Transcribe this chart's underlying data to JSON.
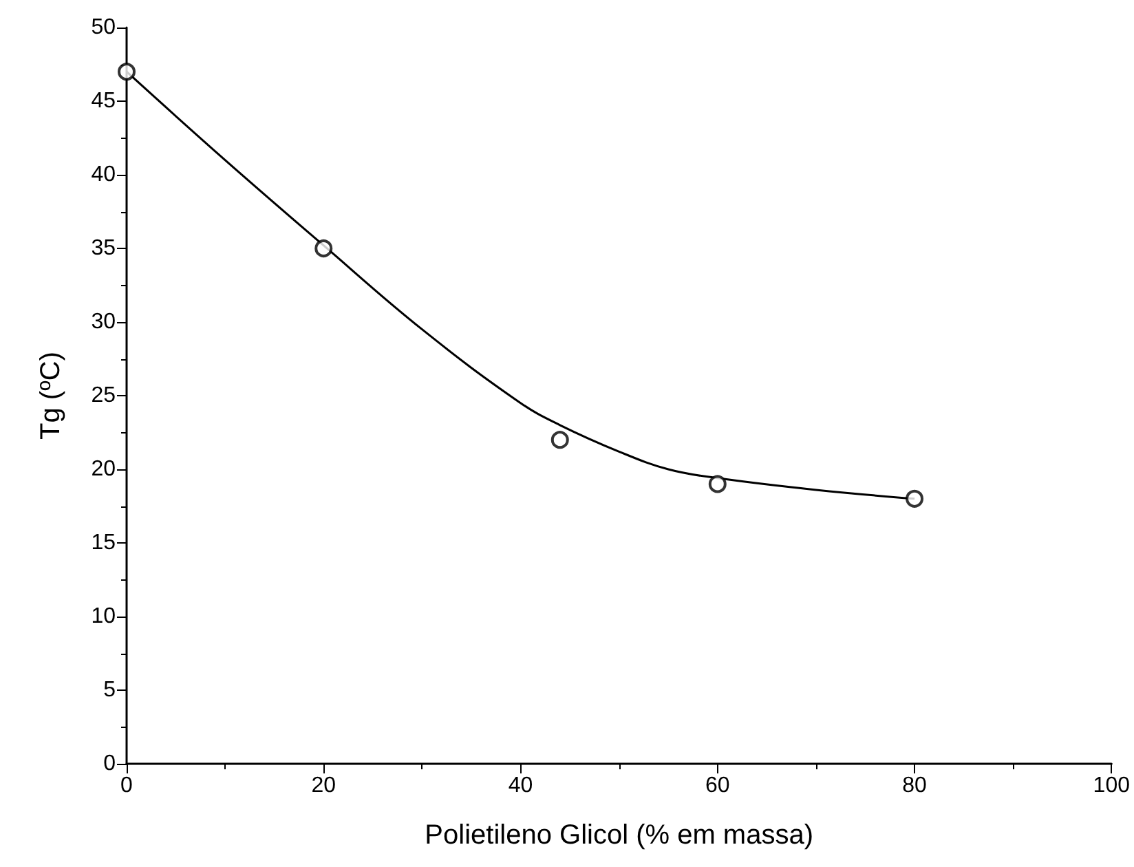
{
  "chart_data": {
    "type": "scatter",
    "xlabel": "Polietileno Glicol (% em massa)",
    "ylabel": "Tg (ºC)",
    "xlim": [
      0,
      100
    ],
    "xticks": [
      0,
      20,
      40,
      60,
      80,
      100
    ],
    "ylim": [
      0,
      50
    ],
    "yticks": [
      0,
      5,
      10,
      15,
      20,
      25,
      30,
      35,
      40,
      45,
      50
    ],
    "grid": false,
    "series": [
      {
        "color": "#000000",
        "marker": "circle",
        "x": [
          0,
          20,
          44,
          60,
          80
        ],
        "values": [
          47,
          35,
          22,
          19,
          18
        ]
      },
      {
        "type": "line",
        "color": "#000000",
        "marker": "none",
        "line_style": "solid",
        "x": [
          0,
          10,
          20,
          30,
          40,
          44,
          50,
          55,
          60,
          70,
          80
        ],
        "values": [
          47,
          41,
          35.2,
          29.5,
          24.5,
          23,
          21.2,
          20,
          19.4,
          18.6,
          18
        ]
      }
    ]
  }
}
